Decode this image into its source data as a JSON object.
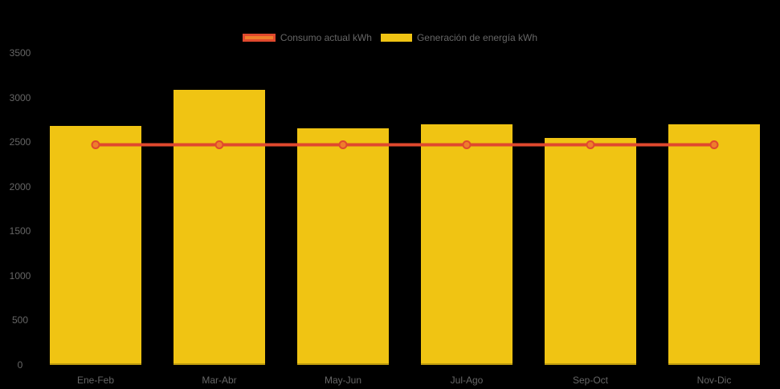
{
  "chart_data": {
    "type": "bar",
    "title": "",
    "xlabel": "",
    "ylabel": "",
    "categories": [
      "Ene-Feb",
      "Mar-Abr",
      "May-Jun",
      "Jul-Ago",
      "Sep-Oct",
      "Nov-Dic"
    ],
    "series": [
      {
        "name": "Consumo actual kWh",
        "type": "line",
        "values": [
          2470,
          2470,
          2470,
          2470,
          2470,
          2470
        ],
        "line_color": "#E0492E",
        "point_fill_color": "#EE7E2B"
      },
      {
        "name": "Generación de energía kWh",
        "type": "bar",
        "values": [
          2680,
          3085,
          2655,
          2700,
          2545,
          2700
        ],
        "bar_color": "#F0C413"
      }
    ],
    "ylim": [
      0,
      3500
    ],
    "yticks": [
      "0",
      "500",
      "1000",
      "1500",
      "2000",
      "2500",
      "3000",
      "3500"
    ],
    "grid": false,
    "legend_position": "top-center",
    "background_color": "#000000",
    "axis_text_color": "#666666"
  }
}
